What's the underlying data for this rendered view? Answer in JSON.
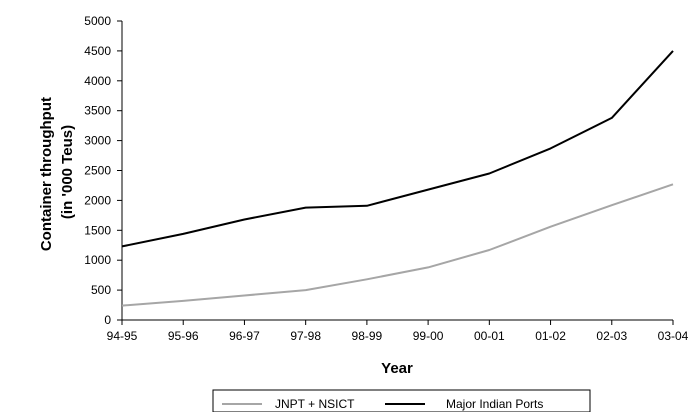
{
  "chart_data": {
    "type": "line",
    "title": "",
    "xlabel": "Year",
    "ylabel_line1": "Container throughput",
    "ylabel_line2": "(in '000 Teus)",
    "categories": [
      "94-95",
      "95-96",
      "96-97",
      "97-98",
      "98-99",
      "99-00",
      "00-01",
      "01-02",
      "02-03",
      "03-04"
    ],
    "ylim": [
      0,
      5000
    ],
    "yticks": [
      "0",
      "500",
      "1000",
      "1500",
      "2000",
      "2500",
      "3000",
      "3500",
      "4000",
      "4500",
      "5000"
    ],
    "grid": false,
    "legend_position": "bottom",
    "series": [
      {
        "name": "JNPT + NSICT",
        "color": "#a6a6a6",
        "values": [
          240,
          320,
          410,
          500,
          680,
          880,
          1170,
          1560,
          1920,
          2270
        ]
      },
      {
        "name": "Major Indian Ports",
        "color": "#000000",
        "values": [
          1230,
          1440,
          1680,
          1880,
          1910,
          2180,
          2450,
          2870,
          3380,
          4500
        ]
      }
    ]
  }
}
